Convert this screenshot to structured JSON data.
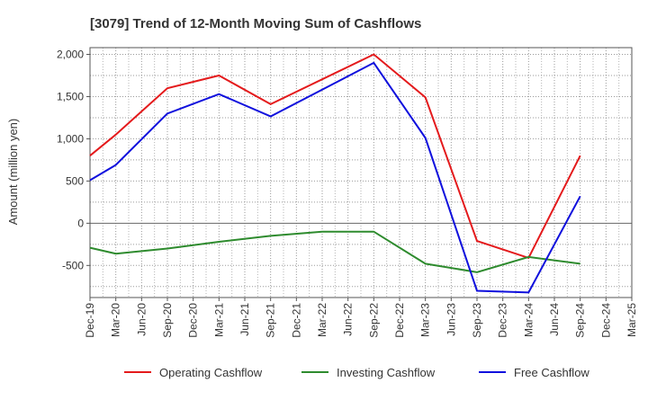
{
  "chart_data": {
    "type": "line",
    "title": "[3079]  Trend of 12-Month Moving Sum of Cashflows",
    "xlabel": "",
    "ylabel": "Amount (million yen)",
    "categories": [
      "Dec-19",
      "Mar-20",
      "Jun-20",
      "Sep-20",
      "Dec-20",
      "Mar-21",
      "Jun-21",
      "Sep-21",
      "Dec-21",
      "Mar-22",
      "Jun-22",
      "Sep-22",
      "Dec-22",
      "Mar-23",
      "Jun-23",
      "Sep-23",
      "Dec-23",
      "Mar-24",
      "Jun-24",
      "Sep-24",
      "Dec-24",
      "Mar-25"
    ],
    "yticks": [
      2000,
      1500,
      1000,
      500,
      0,
      -500
    ],
    "ytick_labels": [
      "2,000",
      "1,500",
      "1,000",
      "500",
      "0",
      "-500"
    ],
    "ylim": [
      -880,
      2080
    ],
    "grid": true,
    "legend_position": "bottom",
    "series": [
      {
        "name": "Operating Cashflow",
        "color": "#e41a1c",
        "values": [
          800,
          1050,
          null,
          1600,
          null,
          1750,
          null,
          1410,
          null,
          null,
          null,
          2000,
          null,
          1490,
          null,
          -210,
          null,
          -410,
          null,
          800,
          null,
          null
        ]
      },
      {
        "name": "Investing Cashflow",
        "color": "#2e8b2e",
        "values": [
          -290,
          -360,
          null,
          -300,
          null,
          -220,
          null,
          -150,
          null,
          -100,
          null,
          -100,
          null,
          -480,
          null,
          -580,
          null,
          -400,
          null,
          -480,
          null,
          null
        ]
      },
      {
        "name": "Free Cashflow",
        "color": "#1010dd",
        "values": [
          510,
          690,
          null,
          1300,
          null,
          1530,
          null,
          1265,
          null,
          null,
          null,
          1900,
          null,
          1010,
          null,
          -800,
          null,
          -820,
          null,
          320,
          null,
          null
        ]
      }
    ]
  }
}
